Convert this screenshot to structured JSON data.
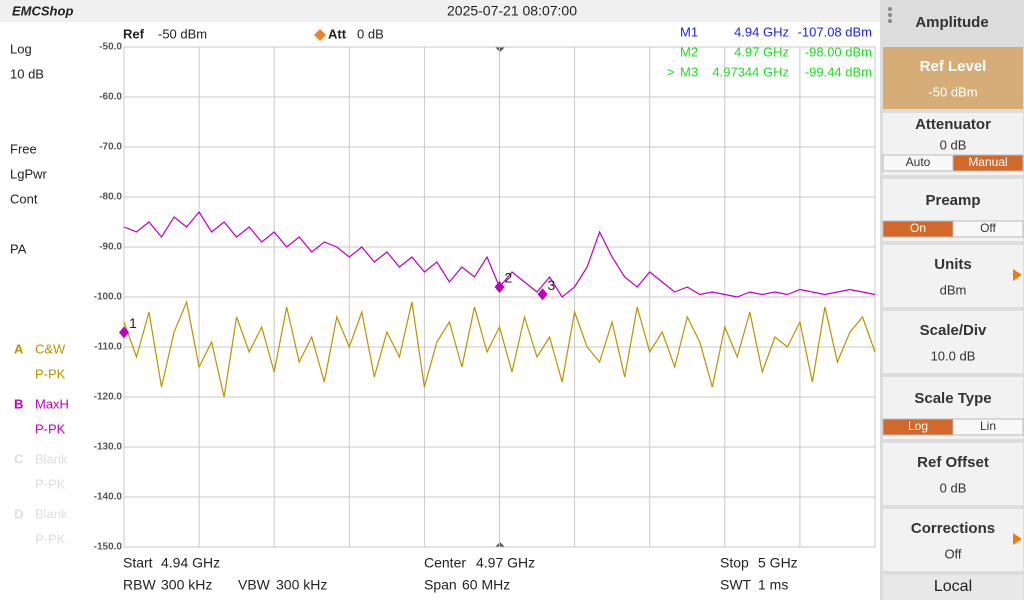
{
  "header": {
    "logo": "EMCShop",
    "datetime": "2025-07-21 08:07:00"
  },
  "left_panel": {
    "scale": "Log",
    "scale_div": "10 dB",
    "modes": [
      "Free",
      "LgPwr",
      "Cont"
    ],
    "preamp": "PA",
    "traces": [
      {
        "letter": "A",
        "detector": "P-PK"
      },
      {
        "letter": "B",
        "detector": "P-PK"
      },
      {
        "letter": "C",
        "name": "Blank",
        "detector": "P-PK"
      },
      {
        "letter": "D",
        "name": "Blank",
        "detector": "P-PK"
      }
    ]
  },
  "plot_header": {
    "ref_label": "Ref",
    "ref_value": "-50 dBm",
    "att_label": "Att",
    "att_value": "0 dB"
  },
  "markers": [
    {
      "name": "M1",
      "freq_label": "4.94 GHz",
      "level_label": "-107.08 dBm",
      "x": 4.94,
      "y": -107.08,
      "number": "1",
      "color": "#2424e0"
    },
    {
      "name": "M2",
      "freq_label": "4.97 GHz",
      "level_label": "-98.00 dBm",
      "x": 4.97,
      "y": -98.0,
      "number": "2",
      "color": "#22dd22"
    },
    {
      "name": "M3",
      "freq_label": "4.97344 GHz",
      "level_label": "-99.44 dBm",
      "x": 4.97344,
      "y": -99.44,
      "number": "3",
      "color": "#22dd22",
      "pointer": ">"
    }
  ],
  "chart_data": {
    "type": "line",
    "x": [
      4.94,
      4.941,
      4.942,
      4.943,
      4.944,
      4.945,
      4.946,
      4.947,
      4.948,
      4.949,
      4.95,
      4.951,
      4.952,
      4.953,
      4.954,
      4.955,
      4.956,
      4.957,
      4.958,
      4.959,
      4.96,
      4.961,
      4.962,
      4.963,
      4.964,
      4.965,
      4.966,
      4.967,
      4.968,
      4.969,
      4.97,
      4.971,
      4.972,
      4.973,
      4.974,
      4.975,
      4.976,
      4.977,
      4.978,
      4.979,
      4.98,
      4.981,
      4.982,
      4.983,
      4.984,
      4.985,
      4.986,
      4.987,
      4.988,
      4.989,
      4.99,
      4.991,
      4.992,
      4.993,
      4.994,
      4.995,
      4.996,
      4.997,
      4.998,
      4.999,
      5.0
    ],
    "xlim": [
      4.94,
      5.0
    ],
    "xticks": [
      4.94,
      4.946,
      4.952,
      4.958,
      4.964,
      4.97,
      4.976,
      4.982,
      4.988,
      4.994,
      5.0
    ],
    "ylim": [
      -150,
      -50
    ],
    "yticks": [
      {
        "value": -50,
        "label": "-50.0"
      },
      {
        "value": -60,
        "label": "-60.0"
      },
      {
        "value": -70,
        "label": "-70.0"
      },
      {
        "value": -80,
        "label": "-80.0"
      },
      {
        "value": -90,
        "label": "-90.0"
      },
      {
        "value": -100,
        "label": "-100.0"
      },
      {
        "value": -110,
        "label": "-110.0"
      },
      {
        "value": -120,
        "label": "-120.0"
      },
      {
        "value": -130,
        "label": "-130.0"
      },
      {
        "value": -140,
        "label": "-140.0"
      },
      {
        "value": -150,
        "label": "-150.0"
      }
    ],
    "grid": true,
    "series": [
      {
        "name": "C&W",
        "color": "#b89400",
        "values": [
          -105,
          -112,
          -103,
          -118,
          -107,
          -101,
          -114,
          -109,
          -120,
          -104,
          -111,
          -106,
          -115,
          -102,
          -113,
          -108,
          -117,
          -104,
          -110,
          -103,
          -116,
          -107,
          -112,
          -101,
          -118,
          -109,
          -105,
          -114,
          -102,
          -111,
          -106,
          -115,
          -104,
          -112,
          -108,
          -117,
          -103,
          -110,
          -113,
          -105,
          -116,
          -102,
          -111,
          -107,
          -114,
          -104,
          -109,
          -118,
          -106,
          -112,
          -103,
          -115,
          -108,
          -110,
          -105,
          -117,
          -102,
          -113,
          -107,
          -104,
          -111
        ]
      },
      {
        "name": "MaxH",
        "color": "#c000c0",
        "values": [
          -86,
          -87,
          -85,
          -88,
          -84,
          -86,
          -83,
          -87,
          -85,
          -88,
          -86,
          -89,
          -87,
          -90,
          -88,
          -91,
          -89,
          -90,
          -92,
          -90,
          -93,
          -91,
          -94,
          -92,
          -95,
          -93,
          -97,
          -94,
          -96,
          -92,
          -98,
          -95,
          -97,
          -99,
          -96,
          -100,
          -98,
          -94,
          -87,
          -92,
          -96,
          -98,
          -95,
          -97,
          -99,
          -98,
          -99.5,
          -99,
          -99.5,
          -100,
          -99,
          -99.5,
          -99,
          -99.5,
          -98.5,
          -99,
          -99.5,
          -99,
          -98.5,
          -99,
          -99.5
        ]
      }
    ]
  },
  "footer": {
    "start_label": "Start",
    "start_value": "4.94 GHz",
    "rbw_label": "RBW",
    "rbw_value": "300 kHz",
    "vbw_label": "VBW",
    "vbw_value": "300 kHz",
    "center_label": "Center",
    "center_value": "4.97 GHz",
    "span_label": "Span",
    "span_value": "60 MHz",
    "stop_label": "Stop",
    "stop_value": "5 GHz",
    "swt_label": "SWT",
    "swt_value": "1 ms"
  },
  "menu": {
    "title": "Amplitude",
    "items": [
      {
        "label": "Ref Level",
        "value": "-50 dBm",
        "selected": true
      },
      {
        "label": "Attenuator",
        "value": "0 dB",
        "options": [
          "Auto",
          "Manual"
        ],
        "option_selected": 1
      },
      {
        "label": "Preamp",
        "options": [
          "On",
          "Off"
        ],
        "option_selected": 0
      },
      {
        "label": "Units",
        "value": "dBm",
        "submenu": true
      },
      {
        "label": "Scale/Div",
        "value": "10.0 dB"
      },
      {
        "label": "Scale Type",
        "options": [
          "Log",
          "Lin"
        ],
        "option_selected": 0
      },
      {
        "label": "Ref Offset",
        "value": "0 dB"
      },
      {
        "label": "Corrections",
        "value": "Off",
        "submenu": true
      }
    ],
    "footer": "Local"
  }
}
